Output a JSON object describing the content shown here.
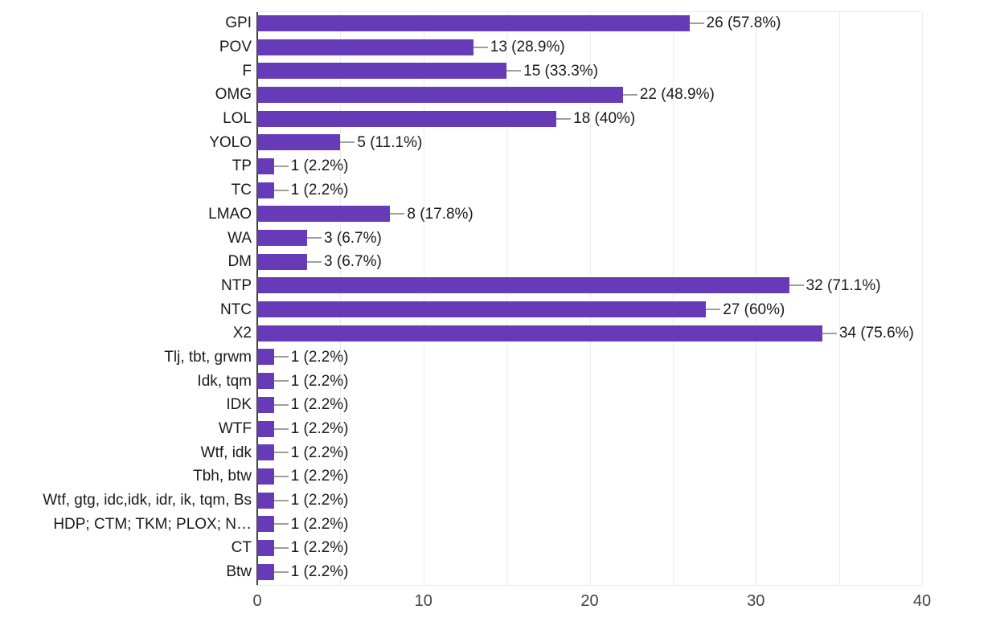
{
  "chart_data": {
    "type": "bar",
    "orientation": "horizontal",
    "title": "",
    "xlabel": "",
    "ylabel": "",
    "xlim": [
      0,
      40
    ],
    "x_ticks": [
      0,
      10,
      20,
      30,
      40
    ],
    "gridline_step": 5,
    "grid": true,
    "legend_position": "none",
    "categories": [
      "GPI",
      "POV",
      "F",
      "OMG",
      "LOL",
      "YOLO",
      "TP",
      "TC",
      "LMAO",
      "WA",
      "DM",
      "NTP",
      "NTC",
      "X2",
      "Tlj, tbt, grwm",
      "Idk, tqm",
      "IDK",
      "WTF",
      "Wtf, idk",
      "Tbh, btw",
      "Wtf, gtg, idc,idk, idr, ik, tqm, Bs",
      "HDP; CTM; TKM; PLOX; N…",
      "CT",
      "Btw"
    ],
    "values": [
      26,
      13,
      15,
      22,
      18,
      5,
      1,
      1,
      8,
      3,
      3,
      32,
      27,
      34,
      1,
      1,
      1,
      1,
      1,
      1,
      1,
      1,
      1,
      1
    ],
    "value_labels": [
      "26 (57.8%)",
      "13 (28.9%)",
      "15 (33.3%)",
      "22 (48.9%)",
      "18 (40%)",
      "5 (11.1%)",
      "1 (2.2%)",
      "1 (2.2%)",
      "8 (17.8%)",
      "3 (6.7%)",
      "3 (6.7%)",
      "32 (71.1%)",
      "27 (60%)",
      "34 (75.6%)",
      "1 (2.2%)",
      "1 (2.2%)",
      "1 (2.2%)",
      "1 (2.2%)",
      "1 (2.2%)",
      "1 (2.2%)",
      "1 (2.2%)",
      "1 (2.2%)",
      "1 (2.2%)",
      "1 (2.2%)"
    ]
  },
  "colors": {
    "bar": "#673ab7",
    "gridline": "#ececec",
    "axis": "#424242",
    "leader": "#9e9e9e",
    "label_text": "#1a1a1a",
    "tick_text": "#424242",
    "background": "#ffffff"
  }
}
